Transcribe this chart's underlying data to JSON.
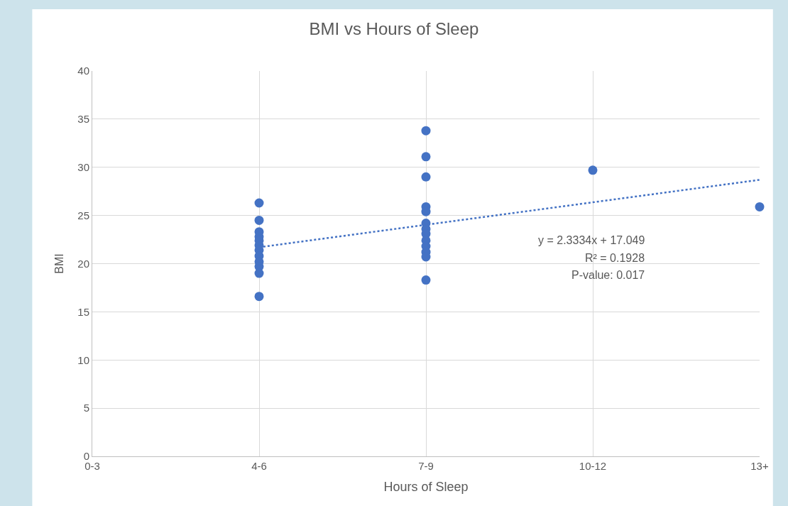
{
  "chart_data": {
    "type": "scatter",
    "title": "BMI vs Hours of Sleep",
    "xlabel": "Hours of Sleep",
    "ylabel": "BMI",
    "categories": [
      "0-3",
      "4-6",
      "7-9",
      "10-12",
      "13+"
    ],
    "series": [
      {
        "color": "#4472c4",
        "marker": "circle",
        "x": [
          "4-6",
          "4-6",
          "4-6",
          "4-6",
          "4-6",
          "4-6",
          "4-6",
          "4-6",
          "4-6",
          "4-6",
          "4-6",
          "4-6",
          "7-9",
          "7-9",
          "7-9",
          "7-9",
          "7-9",
          "7-9",
          "7-9",
          "7-9",
          "7-9",
          "7-9",
          "7-9",
          "7-9",
          "7-9",
          "10-12",
          "13+"
        ],
        "values": [
          26.3,
          24.5,
          23.3,
          22.8,
          22.4,
          21.9,
          21.4,
          20.8,
          20.2,
          19.7,
          19.0,
          16.6,
          33.8,
          31.1,
          29.0,
          25.9,
          25.4,
          24.2,
          23.6,
          23.1,
          22.4,
          21.8,
          21.2,
          20.7,
          18.3,
          29.7,
          25.9
        ]
      },
      {
        "type": "line",
        "color": "#4472c4",
        "line_style": "dotted",
        "marker": "none",
        "x": [
          "4-6",
          "13+"
        ],
        "values": [
          21.7,
          28.7
        ]
      }
    ],
    "ylim": [
      0,
      40
    ],
    "yticks": [
      0,
      5,
      10,
      15,
      20,
      25,
      30,
      35,
      40
    ],
    "grid": true,
    "annotations": [
      "y = 2.3334x + 17.049",
      "R² = 0.1928",
      "P-value: 0.017"
    ]
  }
}
